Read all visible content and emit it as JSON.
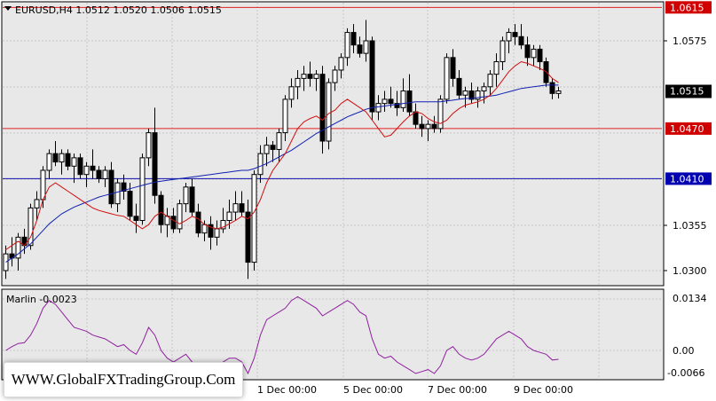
{
  "header": {
    "symbol_info": "EURUSD,H4  1.0512 1.0520 1.0506 1.0515"
  },
  "indicator": {
    "label": "Marlin -0.0023",
    "ticks": [
      "0.0134",
      "0.00",
      "-0.0066"
    ]
  },
  "price_axis": {
    "ticks": [
      "1.0575",
      "1.0355",
      "1.0300"
    ]
  },
  "levels": [
    {
      "label": "1.0615",
      "value": 1.0615,
      "color": "#d00000",
      "line": "#e02020"
    },
    {
      "label": "1.0470",
      "value": 1.047,
      "color": "#d00000",
      "line": "#e02020"
    },
    {
      "label": "1.0410",
      "value": 1.041,
      "color": "#0000b0",
      "line": "#1010b0"
    }
  ],
  "current_price": {
    "label": "1.0515",
    "value": 1.0515
  },
  "time_axis": {
    "labels": [
      "1 Dec 00:00",
      "5 Dec 00:00",
      "7 Dec 00:00",
      "9 Dec 00:00"
    ]
  },
  "watermark": "WWW.GlobalFXTradingGroup.Com",
  "colors": {
    "background": "#e8e8e8",
    "grid": "#c8c8c8",
    "ma_fast": "#d01010",
    "ma_slow": "#1020b0",
    "oscillator": "#9020a0"
  },
  "chart_data": {
    "type": "candlestick",
    "ylim": [
      1.028,
      1.0625
    ],
    "candles": [
      [
        1.03,
        1.033,
        1.029,
        1.032
      ],
      [
        1.032,
        1.034,
        1.0305,
        1.0315
      ],
      [
        1.0315,
        1.0345,
        1.03,
        1.034
      ],
      [
        1.034,
        1.035,
        1.032,
        1.033
      ],
      [
        1.033,
        1.038,
        1.0325,
        1.0375
      ],
      [
        1.0375,
        1.0395,
        1.036,
        1.0385
      ],
      [
        1.0385,
        1.0425,
        1.0375,
        1.042
      ],
      [
        1.042,
        1.0445,
        1.041,
        1.044
      ],
      [
        1.044,
        1.0455,
        1.0425,
        1.043
      ],
      [
        1.043,
        1.0445,
        1.0415,
        1.044
      ],
      [
        1.044,
        1.0445,
        1.042,
        1.0425
      ],
      [
        1.0425,
        1.044,
        1.0405,
        1.0435
      ],
      [
        1.0435,
        1.044,
        1.041,
        1.0415
      ],
      [
        1.0415,
        1.043,
        1.04,
        1.0425
      ],
      [
        1.0425,
        1.0445,
        1.041,
        1.042
      ],
      [
        1.042,
        1.0425,
        1.0405,
        1.041
      ],
      [
        1.041,
        1.0425,
        1.04,
        1.042
      ],
      [
        1.042,
        1.043,
        1.0375,
        1.038
      ],
      [
        1.038,
        1.041,
        1.037,
        1.0405
      ],
      [
        1.0405,
        1.0415,
        1.0385,
        1.0395
      ],
      [
        1.0395,
        1.0405,
        1.036,
        1.0365
      ],
      [
        1.0365,
        1.038,
        1.0345,
        1.036
      ],
      [
        1.036,
        1.044,
        1.0355,
        1.0435
      ],
      [
        1.0435,
        1.047,
        1.0425,
        1.0465
      ],
      [
        1.0465,
        1.0495,
        1.038,
        1.039
      ],
      [
        1.039,
        1.0395,
        1.0345,
        1.0355
      ],
      [
        1.0355,
        1.0375,
        1.034,
        1.0365
      ],
      [
        1.0365,
        1.0375,
        1.0345,
        1.035
      ],
      [
        1.035,
        1.0385,
        1.0345,
        1.038
      ],
      [
        1.038,
        1.0405,
        1.037,
        1.04
      ],
      [
        1.04,
        1.041,
        1.0365,
        1.037
      ],
      [
        1.037,
        1.038,
        1.034,
        1.0345
      ],
      [
        1.0345,
        1.036,
        1.0335,
        1.0355
      ],
      [
        1.0355,
        1.0365,
        1.0325,
        1.034
      ],
      [
        1.034,
        1.036,
        1.033,
        1.035
      ],
      [
        1.035,
        1.0375,
        1.0345,
        1.036
      ],
      [
        1.036,
        1.0385,
        1.035,
        1.037
      ],
      [
        1.037,
        1.0395,
        1.036,
        1.038
      ],
      [
        1.038,
        1.0395,
        1.0365,
        1.037
      ],
      [
        1.037,
        1.0385,
        1.029,
        1.031
      ],
      [
        1.031,
        1.042,
        1.03,
        1.0415
      ],
      [
        1.0415,
        1.045,
        1.0405,
        1.044
      ],
      [
        1.044,
        1.046,
        1.0425,
        1.045
      ],
      [
        1.045,
        1.0455,
        1.043,
        1.0445
      ],
      [
        1.0445,
        1.047,
        1.043,
        1.0465
      ],
      [
        1.0465,
        1.051,
        1.0455,
        1.0505
      ],
      [
        1.0505,
        1.053,
        1.0495,
        1.052
      ],
      [
        1.052,
        1.054,
        1.0505,
        1.053
      ],
      [
        1.053,
        1.0545,
        1.0515,
        1.0535
      ],
      [
        1.0535,
        1.055,
        1.052,
        1.053
      ],
      [
        1.053,
        1.054,
        1.0515,
        1.0535
      ],
      [
        1.0535,
        1.0545,
        1.044,
        1.0455
      ],
      [
        1.0455,
        1.053,
        1.0445,
        1.0525
      ],
      [
        1.0525,
        1.0545,
        1.0515,
        1.054
      ],
      [
        1.054,
        1.056,
        1.053,
        1.0555
      ],
      [
        1.0555,
        1.059,
        1.0545,
        1.0585
      ],
      [
        1.0585,
        1.0595,
        1.056,
        1.057
      ],
      [
        1.057,
        1.058,
        1.0555,
        1.056
      ],
      [
        1.056,
        1.06,
        1.055,
        1.0575
      ],
      [
        1.0575,
        1.058,
        1.048,
        1.049
      ],
      [
        1.049,
        1.051,
        1.048,
        1.05
      ],
      [
        1.05,
        1.0515,
        1.049,
        1.0505
      ],
      [
        1.0505,
        1.052,
        1.0495,
        1.05
      ],
      [
        1.05,
        1.0515,
        1.0485,
        1.0495
      ],
      [
        1.0495,
        1.053,
        1.049,
        1.0515
      ],
      [
        1.0515,
        1.0535,
        1.0485,
        1.049
      ],
      [
        1.049,
        1.05,
        1.047,
        1.0475
      ],
      [
        1.0475,
        1.0485,
        1.046,
        1.047
      ],
      [
        1.047,
        1.048,
        1.0455,
        1.0475
      ],
      [
        1.0475,
        1.0485,
        1.0465,
        1.047
      ],
      [
        1.047,
        1.051,
        1.0465,
        1.0505
      ],
      [
        1.0505,
        1.056,
        1.05,
        1.0555
      ],
      [
        1.0555,
        1.0565,
        1.052,
        1.053
      ],
      [
        1.053,
        1.054,
        1.0505,
        1.051
      ],
      [
        1.051,
        1.052,
        1.0495,
        1.0515
      ],
      [
        1.0515,
        1.0525,
        1.05,
        1.0505
      ],
      [
        1.0505,
        1.052,
        1.0495,
        1.0515
      ],
      [
        1.0515,
        1.0525,
        1.05,
        1.052
      ],
      [
        1.052,
        1.054,
        1.051,
        1.0535
      ],
      [
        1.0535,
        1.056,
        1.052,
        1.055
      ],
      [
        1.055,
        1.058,
        1.054,
        1.0575
      ],
      [
        1.0575,
        1.059,
        1.056,
        1.0585
      ],
      [
        1.0585,
        1.0595,
        1.057,
        1.058
      ],
      [
        1.058,
        1.0595,
        1.0565,
        1.057
      ],
      [
        1.057,
        1.058,
        1.0545,
        1.0555
      ],
      [
        1.0555,
        1.057,
        1.0545,
        1.0565
      ],
      [
        1.0565,
        1.057,
        1.054,
        1.055
      ],
      [
        1.055,
        1.0555,
        1.052,
        1.0525
      ],
      [
        1.0525,
        1.053,
        1.0505,
        1.0512
      ],
      [
        1.0512,
        1.052,
        1.0506,
        1.0515
      ]
    ],
    "ma_fast": [
      1.0325,
      1.033,
      1.0335,
      1.033,
      1.034,
      1.036,
      1.0385,
      1.04,
      1.0405,
      1.04,
      1.0395,
      1.039,
      1.0385,
      1.038,
      1.0375,
      1.0372,
      1.037,
      1.0368,
      1.0366,
      1.0365,
      1.036,
      1.0355,
      1.035,
      1.0355,
      1.0365,
      1.037,
      1.0365,
      1.036,
      1.0356,
      1.036,
      1.0365,
      1.0362,
      1.0355,
      1.0352,
      1.035,
      1.0352,
      1.0356,
      1.036,
      1.0365,
      1.0362,
      1.037,
      1.0385,
      1.0405,
      1.042,
      1.043,
      1.044,
      1.0455,
      1.047,
      1.0478,
      1.0482,
      1.0485,
      1.048,
      1.0488,
      1.0492,
      1.05,
      1.0505,
      1.05,
      1.0495,
      1.049,
      1.048,
      1.047,
      1.046,
      1.0462,
      1.047,
      1.0478,
      1.0485,
      1.049,
      1.0488,
      1.0482,
      1.0478,
      1.0476,
      1.048,
      1.0488,
      1.0494,
      1.0498,
      1.05,
      1.0502,
      1.0505,
      1.051,
      1.0518,
      1.0528,
      1.0538,
      1.0545,
      1.055,
      1.0548,
      1.0545,
      1.0542,
      1.0538,
      1.053,
      1.0525
    ],
    "ma_slow": [
      1.031,
      1.0315,
      1.032,
      1.0326,
      1.0332,
      1.034,
      1.0348,
      1.0356,
      1.0362,
      1.0368,
      1.0372,
      1.0376,
      1.0379,
      1.0382,
      1.0385,
      1.0388,
      1.039,
      1.0392,
      1.0394,
      1.0396,
      1.0398,
      1.04,
      1.0402,
      1.0404,
      1.0406,
      1.0407,
      1.0408,
      1.0409,
      1.041,
      1.0411,
      1.0412,
      1.0413,
      1.0414,
      1.0415,
      1.0416,
      1.0417,
      1.0418,
      1.0419,
      1.042,
      1.042,
      1.0422,
      1.0425,
      1.0428,
      1.0432,
      1.0436,
      1.044,
      1.0444,
      1.0449,
      1.0454,
      1.0459,
      1.0464,
      1.0468,
      1.0472,
      1.0476,
      1.048,
      1.0484,
      1.0487,
      1.049,
      1.0493,
      1.0495,
      1.0496,
      1.0497,
      1.0498,
      1.0499,
      1.05,
      1.0501,
      1.0502,
      1.0502,
      1.0502,
      1.0502,
      1.0502,
      1.0503,
      1.0504,
      1.0505,
      1.0506,
      1.0506,
      1.0507,
      1.0508,
      1.0509,
      1.051,
      1.0512,
      1.0514,
      1.0516,
      1.0518,
      1.0519,
      1.052,
      1.0521,
      1.0522,
      1.0522,
      1.0522
    ],
    "oscillator": [
      0.0,
      0.001,
      0.0018,
      0.002,
      0.004,
      0.007,
      0.011,
      0.013,
      0.012,
      0.01,
      0.008,
      0.006,
      0.0055,
      0.005,
      0.004,
      0.0035,
      0.003,
      0.002,
      0.001,
      0.0015,
      0.0,
      -0.001,
      0.002,
      0.006,
      0.004,
      0.0,
      -0.002,
      -0.003,
      -0.002,
      -0.001,
      -0.003,
      -0.004,
      -0.005,
      -0.005,
      -0.004,
      -0.003,
      -0.002,
      -0.002,
      -0.003,
      -0.006,
      -0.002,
      0.004,
      0.008,
      0.009,
      0.01,
      0.011,
      0.013,
      0.014,
      0.013,
      0.012,
      0.011,
      0.009,
      0.01,
      0.011,
      0.012,
      0.013,
      0.012,
      0.01,
      0.009,
      0.003,
      -0.001,
      -0.002,
      -0.0015,
      -0.003,
      -0.004,
      -0.005,
      -0.006,
      -0.0055,
      -0.005,
      -0.006,
      -0.004,
      0.0,
      0.001,
      -0.001,
      -0.002,
      -0.0025,
      -0.002,
      -0.001,
      0.001,
      0.003,
      0.004,
      0.005,
      0.004,
      0.003,
      0.001,
      0.0,
      -0.0005,
      -0.001,
      -0.0025,
      -0.0023
    ],
    "osc_ylim": [
      -0.0075,
      0.0145
    ]
  }
}
